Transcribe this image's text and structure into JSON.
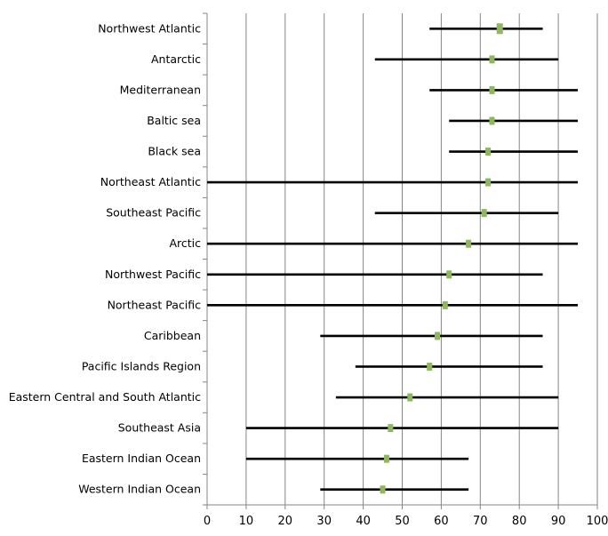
{
  "chart_data": {
    "type": "range-dot",
    "categories": [
      "Northwest Atlantic",
      "Antarctic",
      "Mediterranean",
      "Baltic sea",
      "Black sea",
      "Northeast Atlantic",
      "Southeast Pacific",
      "Arctic",
      "Northwest Pacific",
      "Northeast Pacific",
      "Caribbean",
      "Pacific Islands Region",
      "Eastern Central and South Atlantic",
      "Southeast Asia",
      "Eastern Indian Ocean",
      "Western Indian Ocean"
    ],
    "series": [
      {
        "values": [
          75,
          73,
          73,
          73,
          72,
          72,
          71,
          67,
          62,
          61,
          59,
          57,
          52,
          47,
          46,
          45
        ]
      }
    ],
    "ranges": [
      [
        57,
        86
      ],
      [
        43,
        90
      ],
      [
        57,
        95
      ],
      [
        62,
        95
      ],
      [
        62,
        95
      ],
      [
        0,
        95
      ],
      [
        43,
        90
      ],
      [
        0,
        95
      ],
      [
        0,
        86
      ],
      [
        0,
        95
      ],
      [
        29,
        86
      ],
      [
        38,
        86
      ],
      [
        33,
        90
      ],
      [
        10,
        90
      ],
      [
        10,
        67
      ],
      [
        29,
        67
      ]
    ],
    "xlim": [
      0,
      100
    ],
    "xticks": [
      "0",
      "10",
      "20",
      "30",
      "40",
      "50",
      "60",
      "70",
      "80",
      "90",
      "100"
    ],
    "grid": true,
    "colors": {
      "marker": "#8db85c",
      "range": "#000000",
      "grid": "#868686",
      "axis": "#868686"
    }
  }
}
